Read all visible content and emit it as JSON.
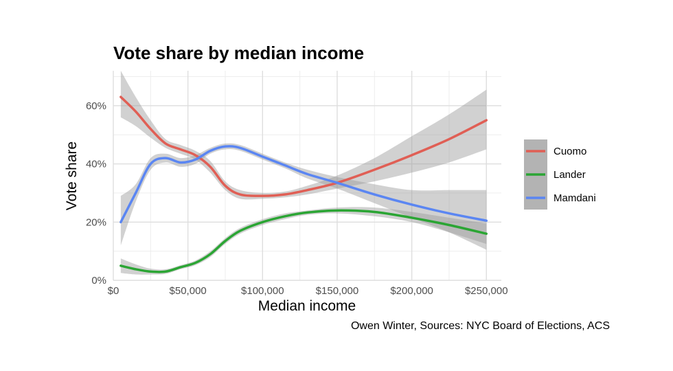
{
  "chart_data": {
    "type": "line",
    "title": "Vote share by median income",
    "xlabel": "Median income",
    "ylabel": "Vote share",
    "caption": "Owen Winter, Sources: NYC Board of Elections, ACS",
    "xlim": [
      0,
      260000
    ],
    "ylim": [
      0,
      72
    ],
    "x_ticks": [
      0,
      50000,
      100000,
      150000,
      200000,
      250000
    ],
    "x_tick_labels": [
      "$0",
      "$50,000",
      "$100,000",
      "$150,000",
      "$200,000",
      "$250,000"
    ],
    "y_ticks": [
      0,
      20,
      40,
      60
    ],
    "y_tick_labels": [
      "0%",
      "20%",
      "40%",
      "60%"
    ],
    "grid": true,
    "legend_placement": "right",
    "series": [
      {
        "name": "Cuomo",
        "color": "#e05f55",
        "points": [
          [
            5000,
            63
          ],
          [
            15000,
            58
          ],
          [
            25000,
            52
          ],
          [
            35000,
            47
          ],
          [
            45000,
            45
          ],
          [
            55000,
            43
          ],
          [
            65000,
            39
          ],
          [
            75000,
            32.5
          ],
          [
            85000,
            29.5
          ],
          [
            100000,
            29
          ],
          [
            115000,
            29.5
          ],
          [
            130000,
            31
          ],
          [
            150000,
            33.5
          ],
          [
            175000,
            38
          ],
          [
            200000,
            43
          ],
          [
            225000,
            48.5
          ],
          [
            250000,
            55
          ]
        ],
        "ci_lower": [
          56,
          53,
          49,
          45.5,
          43.5,
          41.5,
          37,
          31,
          28,
          28,
          28.5,
          29.5,
          31.5,
          34,
          37,
          40.5,
          45
        ],
        "ci_upper": [
          72,
          63,
          55,
          48.5,
          46.5,
          44.5,
          41,
          34,
          31,
          30,
          30.5,
          32.5,
          36,
          42,
          49.5,
          57,
          65.5
        ]
      },
      {
        "name": "Lander",
        "color": "#2ba534",
        "points": [
          [
            5000,
            5
          ],
          [
            15000,
            3.8
          ],
          [
            25000,
            3
          ],
          [
            35000,
            3
          ],
          [
            45000,
            4.5
          ],
          [
            55000,
            6
          ],
          [
            65000,
            9
          ],
          [
            75000,
            13.5
          ],
          [
            85000,
            17
          ],
          [
            100000,
            20
          ],
          [
            115000,
            22
          ],
          [
            130000,
            23.3
          ],
          [
            150000,
            24
          ],
          [
            175000,
            23.5
          ],
          [
            200000,
            21.5
          ],
          [
            225000,
            19
          ],
          [
            250000,
            16
          ]
        ],
        "ci_lower": [
          2.5,
          2,
          2,
          2.2,
          3.8,
          5.2,
          8,
          12.5,
          16,
          19,
          21,
          22.5,
          23,
          22,
          20,
          16.5,
          12.5
        ],
        "ci_upper": [
          7.5,
          5.5,
          4,
          3.8,
          5.2,
          6.8,
          10,
          14.5,
          18,
          21,
          23,
          24,
          25,
          25,
          23.5,
          21.5,
          19.5
        ]
      },
      {
        "name": "Mamdani",
        "color": "#5b86f2",
        "points": [
          [
            5000,
            20
          ],
          [
            15000,
            30
          ],
          [
            25000,
            40
          ],
          [
            35000,
            42
          ],
          [
            45000,
            40.5
          ],
          [
            55000,
            41.5
          ],
          [
            65000,
            44.5
          ],
          [
            75000,
            46
          ],
          [
            85000,
            45.5
          ],
          [
            100000,
            42.5
          ],
          [
            115000,
            39.5
          ],
          [
            130000,
            36.5
          ],
          [
            150000,
            33.5
          ],
          [
            175000,
            29.5
          ],
          [
            200000,
            26
          ],
          [
            225000,
            23
          ],
          [
            250000,
            20.5
          ]
        ],
        "ci_lower": [
          12,
          27,
          38,
          40.5,
          39,
          40,
          43.5,
          45,
          44.5,
          41.5,
          38.5,
          35,
          31.5,
          26.5,
          21.5,
          16.5,
          10.5
        ],
        "ci_upper": [
          29,
          33,
          42,
          43.5,
          42,
          43,
          45.5,
          47,
          46.5,
          43.5,
          40.5,
          38,
          35.5,
          33,
          31,
          31,
          31
        ]
      }
    ]
  }
}
